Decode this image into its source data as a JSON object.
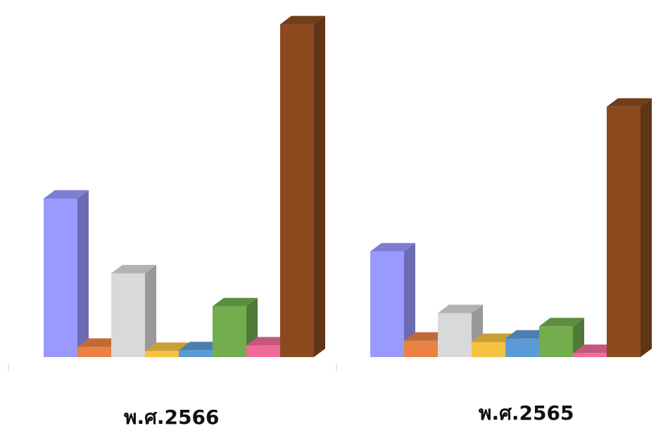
{
  "chart_data": {
    "type": "bar",
    "style": "3d-column",
    "legend": "none",
    "grid": false,
    "axis_labels_visible": false,
    "colors": [
      "#9999FF",
      "#E98344",
      "#D9D9D9",
      "#F5C242",
      "#5B9BD5",
      "#72AD4E",
      "#EE6B97",
      "#8B4A1E"
    ],
    "groups": [
      {
        "label": "พ.ศ.2566",
        "values": [
          231,
          15,
          122,
          9,
          10,
          74,
          17,
          485
        ]
      },
      {
        "label": "พ.ศ.2565",
        "values": [
          154,
          24,
          64,
          22,
          27,
          45,
          6,
          365
        ]
      }
    ],
    "ylim": [
      0,
      500
    ]
  }
}
